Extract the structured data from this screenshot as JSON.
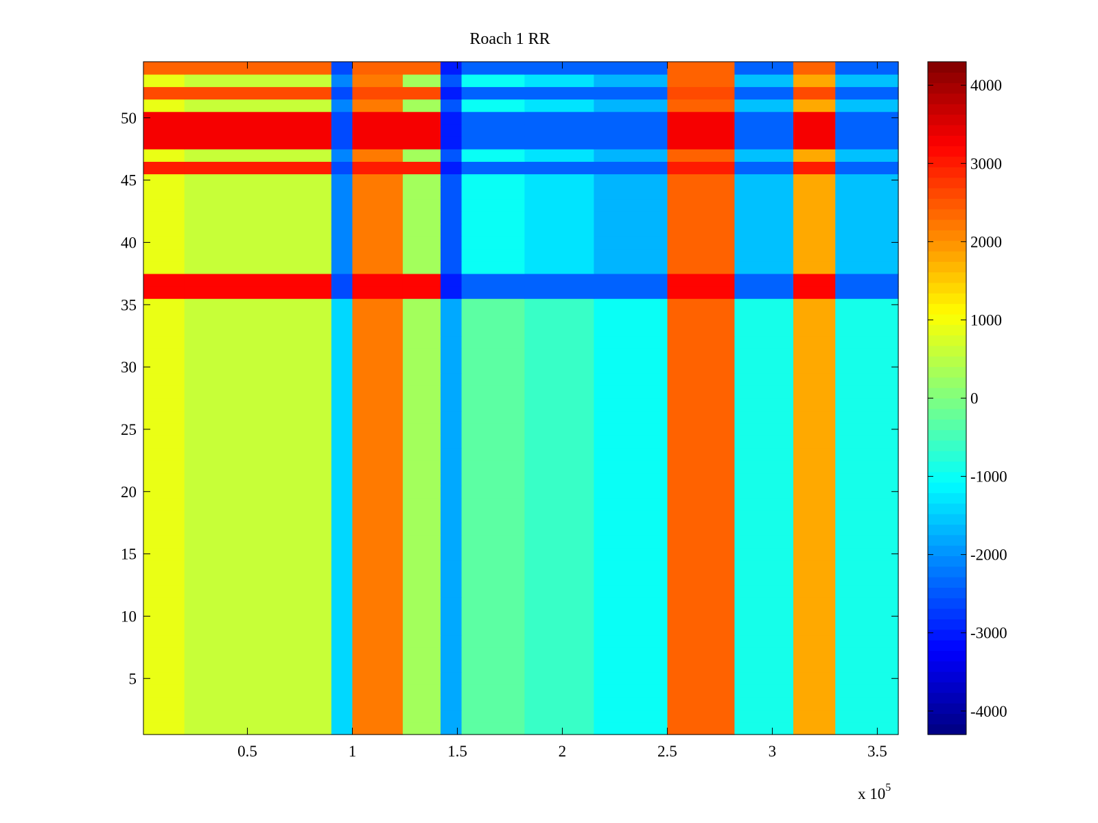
{
  "chart_data": {
    "type": "heatmap",
    "title": "Roach 1 RR",
    "xlabel": "",
    "ylabel": "",
    "x_exponent_label": "x 10",
    "x_exponent_power": "5",
    "x_scale": 100000,
    "xlim": [
      500,
      360000
    ],
    "ylim": [
      0.5,
      54.5
    ],
    "x_ticks": [
      50000,
      100000,
      150000,
      200000,
      250000,
      300000,
      350000
    ],
    "x_tick_labels": [
      "0.5",
      "1",
      "1.5",
      "2",
      "2.5",
      "3",
      "3.5"
    ],
    "y_ticks": [
      5,
      10,
      15,
      20,
      25,
      30,
      35,
      40,
      45,
      50
    ],
    "y_tick_labels": [
      "5",
      "10",
      "15",
      "20",
      "25",
      "30",
      "35",
      "40",
      "45",
      "50"
    ],
    "colormap": "jet",
    "colorbar": {
      "range": [
        -4300,
        4300
      ],
      "ticks": [
        4000,
        3000,
        2000,
        1000,
        0,
        -1000,
        -2000,
        -3000,
        -4000
      ],
      "tick_labels": [
        "4000",
        "3000",
        "2000",
        "1000",
        "0",
        "-1000",
        "-2000",
        "-3000",
        "-4000"
      ]
    },
    "rows": 54,
    "grid": false,
    "column_bands": [
      {
        "x": [
          500,
          20000
        ],
        "value": 900
      },
      {
        "x": [
          20000,
          90000
        ],
        "value": 600
      },
      {
        "x": [
          90000,
          100000
        ],
        "value": -1400
      },
      {
        "x": [
          100000,
          124000
        ],
        "value": 2200
      },
      {
        "x": [
          124000,
          142000
        ],
        "value": 300
      },
      {
        "x": [
          142000,
          152000
        ],
        "value": -1800
      },
      {
        "x": [
          152000,
          182000
        ],
        "value": -300
      },
      {
        "x": [
          182000,
          215000
        ],
        "value": -600
      },
      {
        "x": [
          215000,
          250000
        ],
        "value": -1000
      },
      {
        "x": [
          250000,
          282000
        ],
        "value": 2400
      },
      {
        "x": [
          282000,
          310000
        ],
        "value": -900
      },
      {
        "x": [
          310000,
          330000
        ],
        "value": 1800
      },
      {
        "x": [
          330000,
          360000
        ],
        "value": -900
      }
    ],
    "row_bands": [
      {
        "rows": [
          36,
          37
        ],
        "value": 3200
      },
      {
        "rows": [
          46,
          46
        ],
        "value": 3000
      },
      {
        "rows": [
          48,
          50
        ],
        "value": 3300
      },
      {
        "rows": [
          52,
          52
        ],
        "value": 2600
      },
      {
        "rows": [
          54,
          54
        ],
        "value": 2400
      }
    ]
  }
}
